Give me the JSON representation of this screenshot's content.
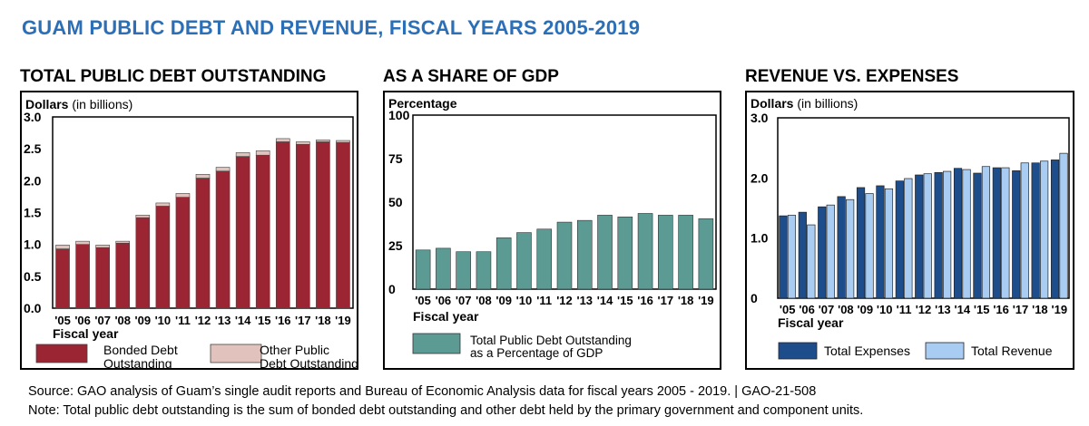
{
  "header": {
    "title": "GUAM PUBLIC DEBT AND REVENUE, FISCAL YEARS 2005-2019"
  },
  "footer": {
    "source": "Source: GAO analysis of Guam’s single audit reports and Bureau of Economic Analysis data for fiscal years 2005 - 2019. | GAO-21-508",
    "note": "Note: Total public debt outstanding is the sum of bonded debt outstanding and other debt held by the primary government and component units."
  },
  "colors": {
    "title_blue": "#2a6fb7",
    "bonded": "#9b2533",
    "other": "#e2c2bc",
    "teal": "#5c9a94",
    "expenses": "#1e4d8c",
    "revenue": "#a9cdf2"
  },
  "chart_data": [
    {
      "type": "bar",
      "panel_title": "TOTAL PUBLIC DEBT OUTSTANDING",
      "ylabel_bold": "Dollars",
      "ylabel_rest": " (in billions)",
      "xlabel": "Fiscal year",
      "categories": [
        "'05",
        "'06",
        "'07",
        "'08",
        "'09",
        "'10",
        "'11",
        "'12",
        "'13",
        "'14",
        "'15",
        "'16",
        "'17",
        "'18",
        "'19"
      ],
      "stacked": true,
      "ylim": [
        0,
        3.0
      ],
      "yticks": [
        "0.0",
        "0.5",
        "1.0",
        "1.5",
        "2.0",
        "2.5",
        "3.0"
      ],
      "series": [
        {
          "name": "Bonded Debt Outstanding",
          "legend_lines": [
            "Bonded Debt",
            "Outstanding"
          ],
          "color": "#9b2533",
          "values": [
            0.93,
            1.0,
            0.95,
            1.02,
            1.42,
            1.6,
            1.74,
            2.04,
            2.15,
            2.38,
            2.4,
            2.61,
            2.57,
            2.61,
            2.6
          ]
        },
        {
          "name": "Other Public Debt Outstanding",
          "legend_lines": [
            "Other Public",
            "Debt Outstanding"
          ],
          "color": "#e2c2bc",
          "values": [
            0.06,
            0.05,
            0.04,
            0.03,
            0.04,
            0.05,
            0.06,
            0.06,
            0.06,
            0.06,
            0.07,
            0.05,
            0.04,
            0.03,
            0.03
          ]
        }
      ]
    },
    {
      "type": "bar",
      "panel_title": "AS A SHARE OF GDP",
      "ylabel_bold": "Percentage",
      "ylabel_rest": "",
      "xlabel": "Fiscal year",
      "categories": [
        "'05",
        "'06",
        "'07",
        "'08",
        "'09",
        "'10",
        "'11",
        "'12",
        "'13",
        "'14",
        "'15",
        "'16",
        "'17",
        "'18",
        "'19"
      ],
      "ylim": [
        0,
        100
      ],
      "yticks": [
        "0",
        "25",
        "50",
        "75",
        "100"
      ],
      "series": [
        {
          "name": "Total Public Debt Outstanding as a Percentage of GDP",
          "legend_lines": [
            "Total Public Debt Outstanding",
            "as a Percentage of GDP"
          ],
          "color": "#5c9a94",
          "values": [
            22.5,
            23.5,
            21.5,
            21.5,
            29.5,
            32.5,
            34.5,
            38.5,
            39.5,
            42.5,
            41.5,
            43.5,
            42.5,
            42.5,
            40.5
          ]
        }
      ]
    },
    {
      "type": "bar",
      "panel_title": "REVENUE VS. EXPENSES",
      "ylabel_bold": "Dollars",
      "ylabel_rest": " (in billions)",
      "xlabel": "Fiscal year",
      "categories": [
        "'05",
        "'06",
        "'07",
        "'08",
        "'09",
        "'10",
        "'11",
        "'12",
        "'13",
        "'14",
        "'15",
        "'16",
        "'17",
        "'18",
        "'19"
      ],
      "ylim": [
        0,
        3.0
      ],
      "yticks": [
        "0",
        "1.0",
        "2.0",
        "3.0"
      ],
      "series": [
        {
          "name": "Total Expenses",
          "legend_lines": [
            "Total Expenses"
          ],
          "color": "#1e4d8c",
          "values": [
            1.37,
            1.43,
            1.52,
            1.69,
            1.84,
            1.87,
            1.95,
            2.05,
            2.09,
            2.16,
            2.08,
            2.17,
            2.12,
            2.25,
            2.3
          ]
        },
        {
          "name": "Total Revenue",
          "legend_lines": [
            "Total Revenue"
          ],
          "color": "#a9cdf2",
          "values": [
            1.38,
            1.22,
            1.55,
            1.64,
            1.74,
            1.82,
            1.99,
            2.07,
            2.11,
            2.14,
            2.19,
            2.17,
            2.25,
            2.28,
            2.41
          ]
        }
      ]
    }
  ]
}
